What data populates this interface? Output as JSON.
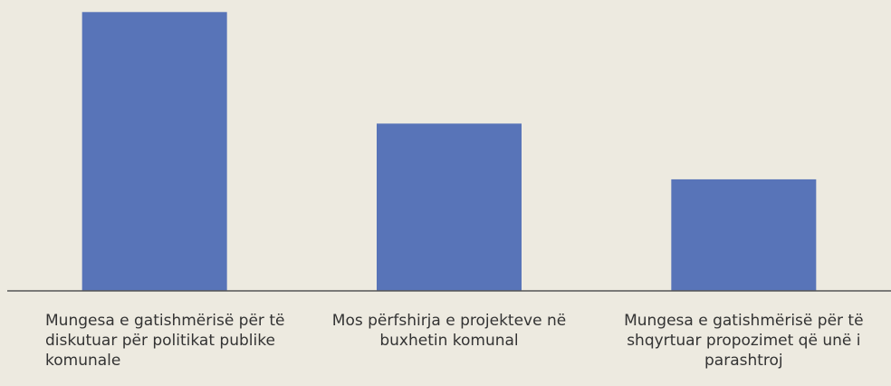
{
  "chart_data": {
    "type": "bar",
    "categories": [
      "Mungesa e gatishmërisë për të diskutuar për politikat publike komunale",
      "Mos përfshirja e projekteve në buxhetin komunal",
      "Mungesa e gatishmërisë për të shqyrtuar propozimet që unë i parashtroj"
    ],
    "values": [
      50,
      30,
      20
    ],
    "color": "#5874b8",
    "ylim": [
      0,
      52
    ]
  }
}
